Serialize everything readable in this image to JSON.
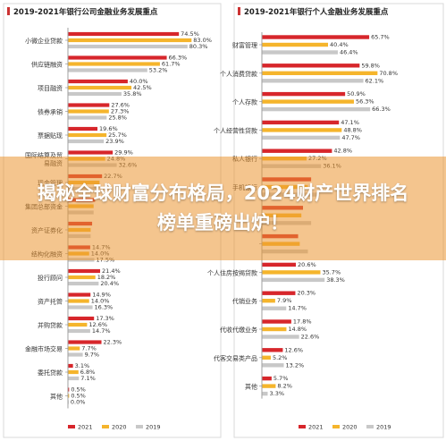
{
  "colors": {
    "2021": "#d7262b",
    "2020": "#f5b52c",
    "2019": "#c8c8c8",
    "header_mark": "#cc3333"
  },
  "banner": {
    "text": "揭秘全球财富分布格局，2024财产世界排名榜单重磅出炉！"
  },
  "chart_data": [
    {
      "type": "bar",
      "orientation": "horizontal",
      "title": "2019-2021年银行公司金融业务发展重点",
      "categories": [
        "小微企业贷款",
        "供应链融资",
        "项目融资",
        "债券承销",
        "票据贴现",
        "国际结算及贸易融资",
        "现金管理",
        "集团总部资金",
        "资产证券化",
        "结构化融资",
        "投行顾问",
        "资产托管",
        "并购贷款",
        "金融市场交易",
        "委托贷款",
        "其他"
      ],
      "series": [
        {
          "name": "2021",
          "values": [
            74.5,
            66.3,
            40.0,
            27.6,
            19.6,
            29.9,
            22.7,
            18.0,
            16.0,
            14.7,
            21.4,
            14.9,
            17.3,
            22.3,
            3.1,
            0.5
          ]
        },
        {
          "name": "2020",
          "values": [
            83.0,
            61.7,
            42.5,
            27.3,
            25.7,
            24.8,
            21.0,
            17.0,
            15.0,
            14.0,
            18.2,
            14.0,
            12.6,
            7.7,
            6.8,
            0.5
          ]
        },
        {
          "name": "2019",
          "values": [
            80.3,
            53.2,
            35.8,
            25.8,
            23.9,
            32.6,
            20.0,
            17.0,
            15.0,
            17.5,
            20.4,
            16.3,
            14.7,
            9.7,
            7.1,
            0.0
          ]
        }
      ],
      "value_labels": [
        [
          "74.5%",
          "83.0%",
          "80.3%"
        ],
        [
          "66.3%",
          "61.7%",
          "53.2%"
        ],
        [
          "40.0%",
          "42.5%",
          "35.8%"
        ],
        [
          "27.6%",
          "27.3%",
          "25.8%"
        ],
        [
          "19.6%",
          "25.7%",
          "23.9%"
        ],
        [
          "29.9%",
          "24.8%",
          "32.6%"
        ],
        [
          "22.7%",
          "",
          ""
        ],
        [
          "",
          "",
          ""
        ],
        [
          "",
          "",
          ""
        ],
        [
          "14.7%",
          "14.0%",
          "17.5%"
        ],
        [
          "21.4%",
          "18.2%",
          "20.4%"
        ],
        [
          "14.9%",
          "14.0%",
          "16.3%"
        ],
        [
          "17.3%",
          "12.6%",
          "14.7%"
        ],
        [
          "22.3%",
          "7.7%",
          "9.7%"
        ],
        [
          "3.1%",
          "6.8%",
          "7.1%"
        ],
        [
          "0.5%",
          "0.5%",
          "0.0%"
        ]
      ],
      "xlim": [
        0,
        100
      ],
      "legend": [
        "2021",
        "2020",
        "2019"
      ],
      "legend_position": "bottom"
    },
    {
      "type": "bar",
      "orientation": "horizontal",
      "title": "2019-2021年银行个人金融业务发展重点",
      "categories": [
        "财富管理",
        "个人消费贷款",
        "个人存款",
        "个人经营性贷款",
        "私人银行",
        "手机银行",
        "",
        "",
        "个人住房按揭贷款",
        "代销业务",
        "代收代缴业务",
        "代客交易类产品",
        "其他"
      ],
      "series": [
        {
          "name": "2021",
          "values": [
            65.7,
            59.8,
            50.9,
            47.1,
            42.8,
            30.0,
            25.0,
            22.0,
            20.6,
            20.3,
            17.8,
            12.6,
            5.7
          ]
        },
        {
          "name": "2020",
          "values": [
            40.4,
            70.8,
            56.3,
            48.8,
            27.2,
            28.0,
            24.0,
            23.0,
            35.7,
            7.9,
            14.8,
            5.2,
            8.2
          ]
        },
        {
          "name": "2019",
          "values": [
            46.4,
            62.1,
            66.3,
            47.7,
            36.1,
            35.0,
            30.0,
            28.0,
            38.3,
            14.7,
            22.6,
            13.2,
            3.3
          ]
        }
      ],
      "value_labels": [
        [
          "65.7%",
          "40.4%",
          "46.4%"
        ],
        [
          "59.8%",
          "70.8%",
          "62.1%"
        ],
        [
          "50.9%",
          "56.3%",
          "66.3%"
        ],
        [
          "47.1%",
          "48.8%",
          "47.7%"
        ],
        [
          "42.8%",
          "27.2%",
          "36.1%"
        ],
        [
          "",
          "",
          ""
        ],
        [
          "",
          "",
          ""
        ],
        [
          "",
          "",
          ""
        ],
        [
          "20.6%",
          "35.7%",
          "38.3%"
        ],
        [
          "20.3%",
          "7.9%",
          "14.7%"
        ],
        [
          "17.8%",
          "14.8%",
          "22.6%"
        ],
        [
          "12.6%",
          "5.2%",
          "13.2%"
        ],
        [
          "5.7%",
          "8.2%",
          "3.3%"
        ]
      ],
      "xlim": [
        0,
        100
      ],
      "legend": [
        "2021",
        "2020",
        "2019"
      ],
      "legend_position": "bottom"
    }
  ]
}
